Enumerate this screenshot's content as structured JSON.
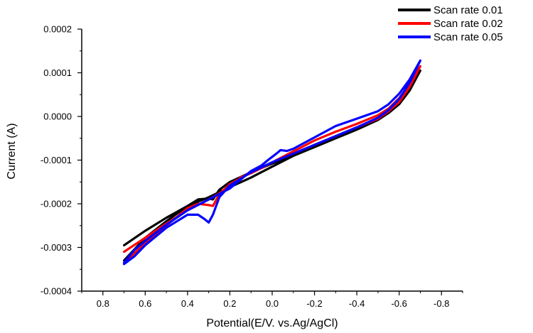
{
  "chart_data": {
    "type": "line",
    "xlabel": "Potential(E/V. vs.Ag/AgCl)",
    "ylabel": "Current (A)",
    "x_reversed": true,
    "xlim": [
      0.9,
      -0.9
    ],
    "ylim": [
      -0.0004,
      0.0002
    ],
    "x_ticks": [
      0.8,
      0.6,
      0.4,
      0.2,
      0.0,
      -0.2,
      -0.4,
      -0.6,
      -0.8
    ],
    "x_tick_labels": [
      "0.8",
      "0.6",
      "0.4",
      "0.2",
      "0.0",
      "-0.2",
      "-0.4",
      "-0.6",
      "-0.8"
    ],
    "y_ticks": [
      -0.0004,
      -0.0003,
      -0.0002,
      -0.0001,
      0.0,
      0.0001,
      0.0002
    ],
    "y_tick_labels": [
      "-0.0004",
      "-0.0003",
      "-0.0002",
      "-0.0001",
      "0.0000",
      "0.0001",
      "0.0002"
    ],
    "grid": false,
    "legend_position": "top-right",
    "series": [
      {
        "name": "Scan rate 0.01",
        "color": "#000000",
        "points": [
          [
            0.7,
            -0.000295
          ],
          [
            0.6,
            -0.000262
          ],
          [
            0.5,
            -0.000232
          ],
          [
            0.4,
            -0.000205
          ],
          [
            0.3,
            -0.000185
          ],
          [
            0.2,
            -0.000162
          ],
          [
            0.1,
            -0.00014
          ],
          [
            0.0,
            -0.000115
          ],
          [
            -0.1,
            -9e-05
          ],
          [
            -0.2,
            -6.5e-05
          ],
          [
            -0.3,
            -4.5e-05
          ],
          [
            -0.4,
            -2.5e-05
          ],
          [
            -0.5,
            -3e-06
          ],
          [
            -0.55,
            1.2e-05
          ],
          [
            -0.6,
            3.5e-05
          ],
          [
            -0.65,
            6.8e-05
          ],
          [
            -0.7,
            0.000105
          ],
          [
            -0.65,
            6e-05
          ],
          [
            -0.6,
            2.8e-05
          ],
          [
            -0.55,
            8e-06
          ],
          [
            -0.5,
            -8e-06
          ],
          [
            -0.4,
            -3e-05
          ],
          [
            -0.3,
            -5e-05
          ],
          [
            -0.2,
            -7e-05
          ],
          [
            -0.1,
            -9e-05
          ],
          [
            0.0,
            -0.000108
          ],
          [
            0.1,
            -0.000128
          ],
          [
            0.2,
            -0.00015
          ],
          [
            0.25,
            -0.000168
          ],
          [
            0.28,
            -0.00019
          ],
          [
            0.3,
            -0.000188
          ],
          [
            0.35,
            -0.00019
          ],
          [
            0.4,
            -0.000205
          ],
          [
            0.5,
            -0.00024
          ],
          [
            0.6,
            -0.000278
          ],
          [
            0.7,
            -0.00033
          ]
        ]
      },
      {
        "name": "Scan rate 0.02",
        "color": "#ff0000",
        "points": [
          [
            0.7,
            -0.00031
          ],
          [
            0.6,
            -0.000278
          ],
          [
            0.5,
            -0.000245
          ],
          [
            0.4,
            -0.000215
          ],
          [
            0.3,
            -0.00019
          ],
          [
            0.2,
            -0.000162
          ],
          [
            0.15,
            -0.00014
          ],
          [
            0.1,
            -0.00013
          ],
          [
            0.05,
            -0.000118
          ],
          [
            0.0,
            -0.000105
          ],
          [
            -0.1,
            -8e-05
          ],
          [
            -0.2,
            -5.5e-05
          ],
          [
            -0.3,
            -3.5e-05
          ],
          [
            -0.4,
            -1.7e-05
          ],
          [
            -0.5,
            3e-06
          ],
          [
            -0.55,
            1.8e-05
          ],
          [
            -0.6,
            4.2e-05
          ],
          [
            -0.65,
            7.5e-05
          ],
          [
            -0.7,
            0.000115
          ],
          [
            -0.65,
            6.8e-05
          ],
          [
            -0.6,
            3.3e-05
          ],
          [
            -0.55,
            1.2e-05
          ],
          [
            -0.5,
            -5e-06
          ],
          [
            -0.4,
            -2.5e-05
          ],
          [
            -0.3,
            -4.5e-05
          ],
          [
            -0.2,
            -6.5e-05
          ],
          [
            -0.1,
            -8.5e-05
          ],
          [
            0.0,
            -0.000105
          ],
          [
            0.1,
            -0.000128
          ],
          [
            0.2,
            -0.000155
          ],
          [
            0.25,
            -0.000178
          ],
          [
            0.28,
            -0.000205
          ],
          [
            0.3,
            -0.000203
          ],
          [
            0.35,
            -0.0002
          ],
          [
            0.4,
            -0.00021
          ],
          [
            0.5,
            -0.00025
          ],
          [
            0.6,
            -0.00029
          ],
          [
            0.7,
            -0.000335
          ]
        ]
      },
      {
        "name": "Scan rate 0.05",
        "color": "#0000ff",
        "points": [
          [
            0.7,
            -0.000335
          ],
          [
            0.65,
            -0.000305
          ],
          [
            0.6,
            -0.000285
          ],
          [
            0.5,
            -0.000248
          ],
          [
            0.4,
            -0.000215
          ],
          [
            0.3,
            -0.00019
          ],
          [
            0.2,
            -0.000165
          ],
          [
            0.15,
            -0.000145
          ],
          [
            0.1,
            -0.000125
          ],
          [
            0.05,
            -0.000112
          ],
          [
            0.02,
            -0.0001
          ],
          [
            -0.02,
            -8.5e-05
          ],
          [
            -0.04,
            -7.7e-05
          ],
          [
            -0.07,
            -7.9e-05
          ],
          [
            -0.1,
            -7.4e-05
          ],
          [
            -0.2,
            -4.8e-05
          ],
          [
            -0.3,
            -2.2e-05
          ],
          [
            -0.4,
            -5e-06
          ],
          [
            -0.5,
            1.2e-05
          ],
          [
            -0.55,
            2.8e-05
          ],
          [
            -0.6,
            5.2e-05
          ],
          [
            -0.65,
            8.5e-05
          ],
          [
            -0.7,
            0.000128
          ],
          [
            -0.65,
            7.8e-05
          ],
          [
            -0.6,
            4e-05
          ],
          [
            -0.55,
            1.5e-05
          ],
          [
            -0.5,
            -3e-06
          ],
          [
            -0.4,
            -2.5e-05
          ],
          [
            -0.3,
            -4.5e-05
          ],
          [
            -0.2,
            -6.5e-05
          ],
          [
            -0.1,
            -8.5e-05
          ],
          [
            0.0,
            -0.000105
          ],
          [
            0.1,
            -0.000128
          ],
          [
            0.2,
            -0.000158
          ],
          [
            0.25,
            -0.000185
          ],
          [
            0.28,
            -0.000225
          ],
          [
            0.3,
            -0.000243
          ],
          [
            0.32,
            -0.000235
          ],
          [
            0.35,
            -0.000225
          ],
          [
            0.4,
            -0.000225
          ],
          [
            0.5,
            -0.000255
          ],
          [
            0.6,
            -0.000295
          ],
          [
            0.65,
            -0.00032
          ],
          [
            0.7,
            -0.000338
          ]
        ]
      }
    ]
  }
}
